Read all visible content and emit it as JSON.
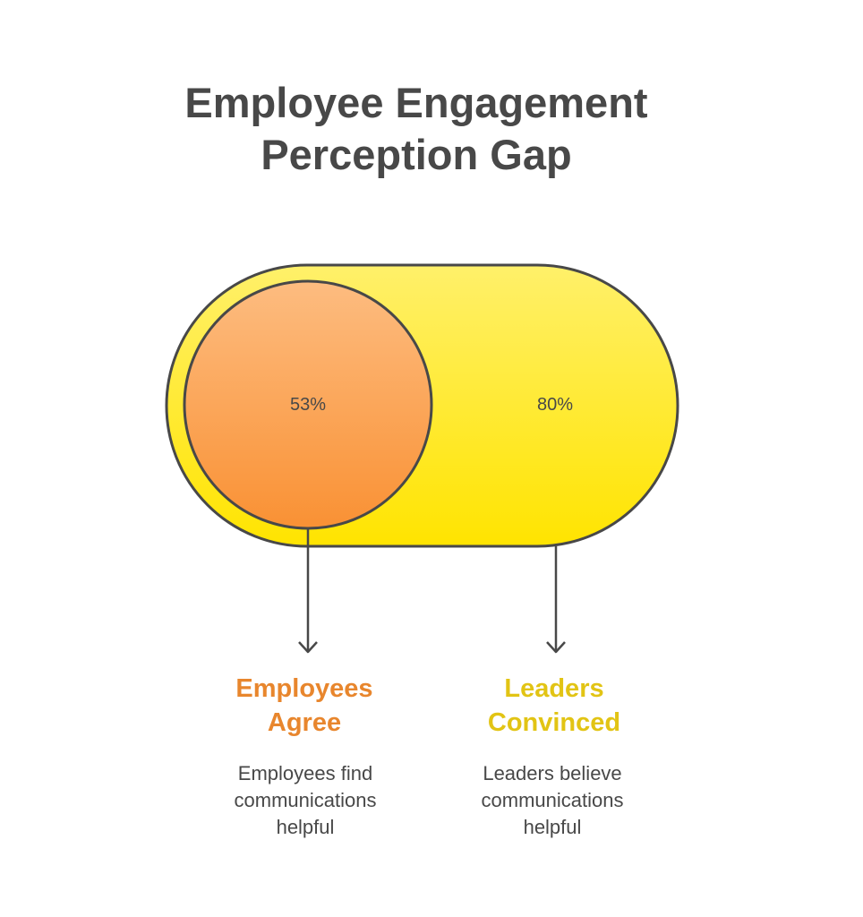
{
  "title": {
    "line1": "Employee Engagement",
    "line2": "Perception Gap"
  },
  "employees": {
    "value": "53%",
    "heading_line1": "Employees",
    "heading_line2": "Agree",
    "desc_line1": "Employees find",
    "desc_line2": "communications",
    "desc_line3": "helpful",
    "color": "#E8862D"
  },
  "leaders": {
    "value": "80%",
    "heading_line1": "Leaders",
    "heading_line2": "Convinced",
    "desc_line1": "Leaders believe",
    "desc_line2": "communications",
    "desc_line3": "helpful",
    "color": "#E2C414"
  }
}
